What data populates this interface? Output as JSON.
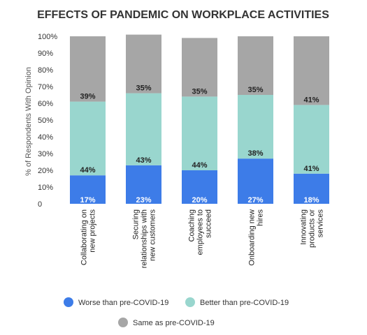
{
  "chart_data": {
    "type": "bar",
    "stacked": true,
    "title": "EFFECTS OF PANDEMIC ON WORKPLACE ACTIVITIES",
    "xlabel": "",
    "ylabel": "% of Respondents With Opinion",
    "ylim": [
      0,
      100
    ],
    "yticks": [
      {
        "value": 0,
        "label": "0"
      },
      {
        "value": 10,
        "label": "10%"
      },
      {
        "value": 20,
        "label": "20%"
      },
      {
        "value": 30,
        "label": "30%"
      },
      {
        "value": 40,
        "label": "40%"
      },
      {
        "value": 50,
        "label": "50%"
      },
      {
        "value": 60,
        "label": "60%"
      },
      {
        "value": 70,
        "label": "70%"
      },
      {
        "value": 80,
        "label": "80%"
      },
      {
        "value": 90,
        "label": "90%"
      },
      {
        "value": 100,
        "label": "100%"
      }
    ],
    "grid": false,
    "legend_position": "bottom",
    "categories": [
      [
        "Collaborating on",
        "new projects"
      ],
      [
        "Securing",
        "relationships with",
        "new customers"
      ],
      [
        "Coaching",
        "employees to",
        "succeed"
      ],
      [
        "Onboarding new",
        "hires"
      ],
      [
        "Innovating",
        "products or",
        "services"
      ]
    ],
    "series": [
      {
        "name": "Worse than pre-COVID-19",
        "color": "#3d7ce8",
        "label_color": "#ffffff",
        "values": [
          17,
          23,
          20,
          27,
          18
        ],
        "labels": [
          "17%",
          "23%",
          "20%",
          "27%",
          "18%"
        ]
      },
      {
        "name": "Better than pre-COVID-19",
        "color": "#99d6ce",
        "label_color": "#222222",
        "values": [
          44,
          43,
          44,
          38,
          41
        ],
        "labels": [
          "44%",
          "43%",
          "44%",
          "38%",
          "41%"
        ]
      },
      {
        "name": "Same as pre-COVID-19",
        "color": "#a6a6a6",
        "label_color": "#222222",
        "values": [
          39,
          35,
          35,
          35,
          41
        ],
        "labels": [
          "39%",
          "35%",
          "35%",
          "35%",
          "41%"
        ]
      }
    ]
  }
}
